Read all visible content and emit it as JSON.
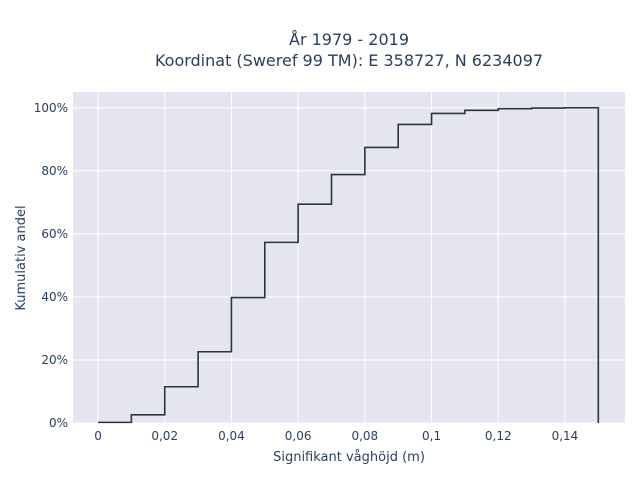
{
  "chart_data": {
    "type": "line",
    "line_shape": "step-cumulative",
    "title_line1": "År 1979 - 2019",
    "title_line2": "Koordinat (Sweref 99 TM): E 358727, N 6234097",
    "xlabel": "Signifikant våghöjd (m)",
    "ylabel": "Kumulativ andel",
    "xlim": [
      -0.0075,
      0.158
    ],
    "ylim": [
      0,
      1.05
    ],
    "x_ticks": [
      0,
      0.02,
      0.04,
      0.06,
      0.08,
      0.1,
      0.12,
      0.14
    ],
    "x_tick_labels": [
      "0",
      "0,02",
      "0,04",
      "0,06",
      "0,08",
      "0,1",
      "0,12",
      "0,14"
    ],
    "y_ticks": [
      0,
      0.2,
      0.4,
      0.6,
      0.8,
      1.0
    ],
    "y_tick_labels": [
      "0%",
      "20%",
      "40%",
      "60%",
      "80%",
      "100%"
    ],
    "grid": true,
    "line_color": "#2a3444",
    "plot_bg": "#e5e5ef",
    "bin_edges": [
      0,
      0.01,
      0.02,
      0.03,
      0.04,
      0.05,
      0.06,
      0.07,
      0.08,
      0.09,
      0.1,
      0.11,
      0.12,
      0.13,
      0.14,
      0.15
    ],
    "cumulative": [
      0.002,
      0.026,
      0.115,
      0.226,
      0.398,
      0.573,
      0.694,
      0.788,
      0.874,
      0.947,
      0.982,
      0.992,
      0.997,
      0.999,
      1.0
    ]
  }
}
